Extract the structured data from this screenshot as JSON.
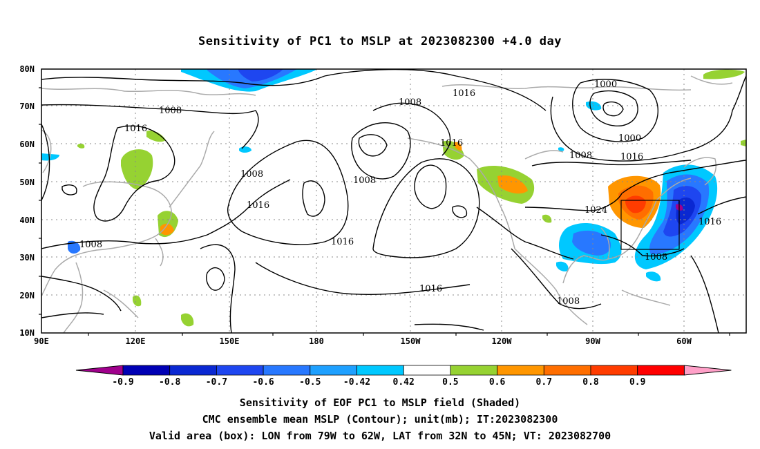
{
  "title": "Sensitivity of PC1 to MSLP at 2023082300 +4.0 day",
  "captions": [
    "Sensitivity of EOF PC1 to MSLP field (Shaded)",
    "CMC ensemble mean MSLP (Contour); unit(mb); IT:2023082300",
    "Valid area (box): LON from 79W to 62W, LAT from 32N to 45N; VT: 2023082700"
  ],
  "map": {
    "lon_ticks": [
      "90E",
      "120E",
      "150E",
      "180",
      "150W",
      "120W",
      "90W",
      "60W"
    ],
    "lat_ticks": [
      "80N",
      "70N",
      "60N",
      "50N",
      "40N",
      "30N",
      "20N",
      "10N"
    ],
    "valid_box": {
      "lon_min": -79,
      "lon_max": -62,
      "lat_min": 32,
      "lat_max": 45
    },
    "contour_labels": [
      "1000",
      "1000",
      "1008",
      "1008",
      "1008",
      "1008",
      "1008",
      "1008",
      "1008",
      "1008",
      "1016",
      "1016",
      "1016",
      "1016",
      "1016",
      "1016",
      "1016",
      "1016",
      "1024"
    ],
    "colors": {
      "grid": "#888888",
      "coast": "#aaaaaa",
      "contour": "#000000"
    }
  },
  "colorbar": {
    "labels": [
      "-0.9",
      "-0.8",
      "-0.7",
      "-0.6",
      "-0.5",
      "-0.42",
      "0.42",
      "0.5",
      "0.6",
      "0.7",
      "0.8",
      "0.9"
    ],
    "colors": [
      "#a0008c",
      "#0000b4",
      "#0a28d2",
      "#1e46f0",
      "#2878ff",
      "#1ea0ff",
      "#00c8ff",
      "#ffffff",
      "#96d232",
      "#ff9600",
      "#ff6e00",
      "#ff3c00",
      "#ff0000",
      "#ffa0c8"
    ]
  }
}
